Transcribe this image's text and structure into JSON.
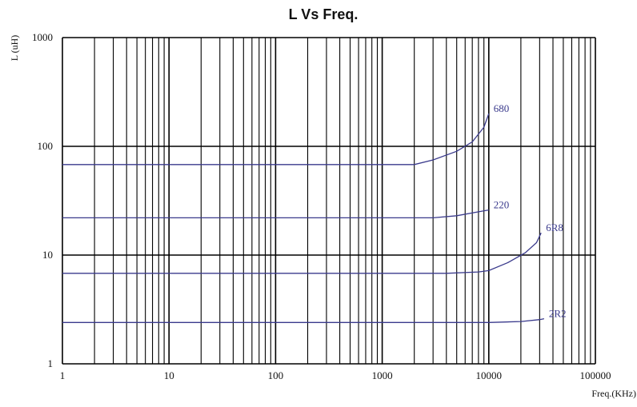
{
  "chart_data": {
    "type": "line",
    "title": "L Vs Freq.",
    "xlabel": "Freq.(KHz)",
    "ylabel": "L (uH)",
    "x_scale": "log",
    "y_scale": "log",
    "xlim": [
      1,
      100000
    ],
    "ylim": [
      1,
      1000
    ],
    "x_ticks": [
      "1",
      "10",
      "100",
      "1000",
      "10000",
      "100000"
    ],
    "y_ticks": [
      "1",
      "10",
      "100",
      "1000"
    ],
    "grid": true,
    "line_color": "#3a3a8c",
    "series": [
      {
        "name": "680",
        "x": [
          1,
          2000,
          3000,
          5000,
          7000,
          9000,
          10000
        ],
        "y": [
          68,
          68,
          75,
          90,
          110,
          150,
          200
        ]
      },
      {
        "name": "220",
        "x": [
          1,
          3000,
          5000,
          8000,
          10000
        ],
        "y": [
          22,
          22,
          23,
          25,
          26
        ]
      },
      {
        "name": "6R8",
        "x": [
          1,
          4000,
          8000,
          10000,
          15000,
          22000,
          28000,
          31000
        ],
        "y": [
          6.8,
          6.8,
          7.0,
          7.2,
          8.5,
          10.5,
          13,
          16
        ]
      },
      {
        "name": "2R2",
        "x": [
          1,
          10000,
          20000,
          30000,
          33000
        ],
        "y": [
          2.4,
          2.4,
          2.45,
          2.55,
          2.6
        ]
      }
    ]
  }
}
